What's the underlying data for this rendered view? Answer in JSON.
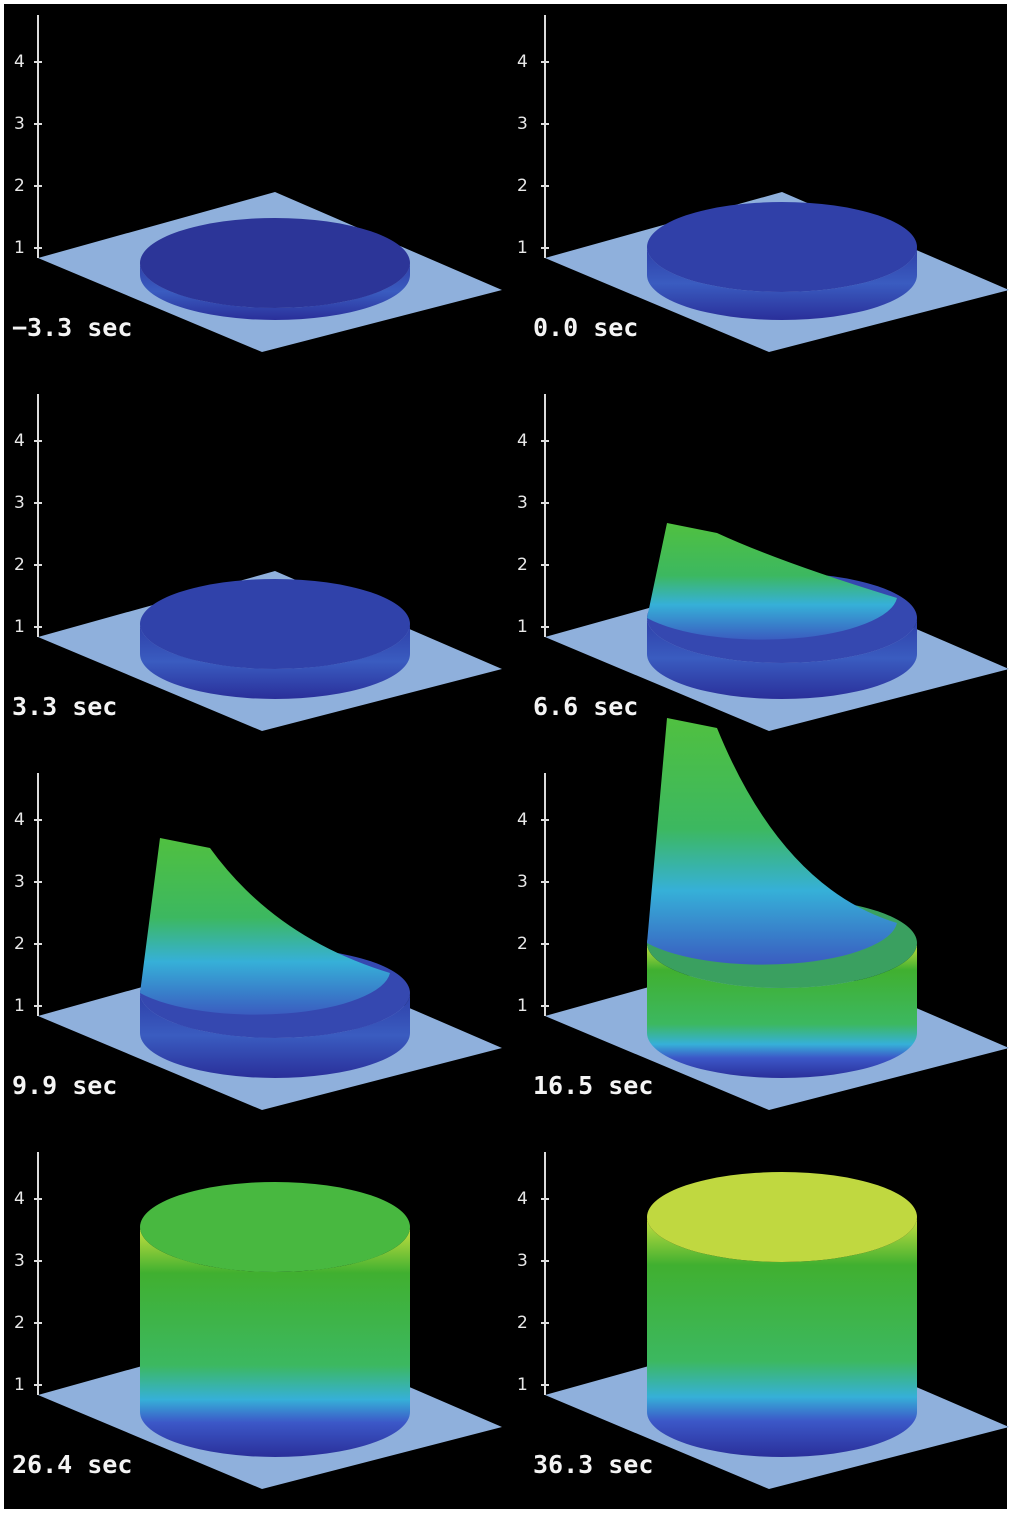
{
  "panels": [
    {
      "label": "−3.3 sec",
      "yticks": [
        1,
        2,
        3,
        4
      ]
    },
    {
      "label": "0.0 sec",
      "yticks": [
        1,
        2,
        3,
        4
      ]
    },
    {
      "label": "3.3 sec",
      "yticks": [
        1,
        2,
        3,
        4
      ]
    },
    {
      "label": "6.6 sec",
      "yticks": [
        1,
        2,
        3,
        4
      ]
    },
    {
      "label": "9.9 sec",
      "yticks": [
        1,
        2,
        3,
        4
      ]
    },
    {
      "label": "16.5 sec",
      "yticks": [
        1,
        2,
        3,
        4
      ]
    },
    {
      "label": "26.4 sec",
      "yticks": [
        1,
        2,
        3,
        4
      ]
    },
    {
      "label": "36.3 sec",
      "yticks": [
        1,
        2,
        3,
        4
      ]
    }
  ]
}
